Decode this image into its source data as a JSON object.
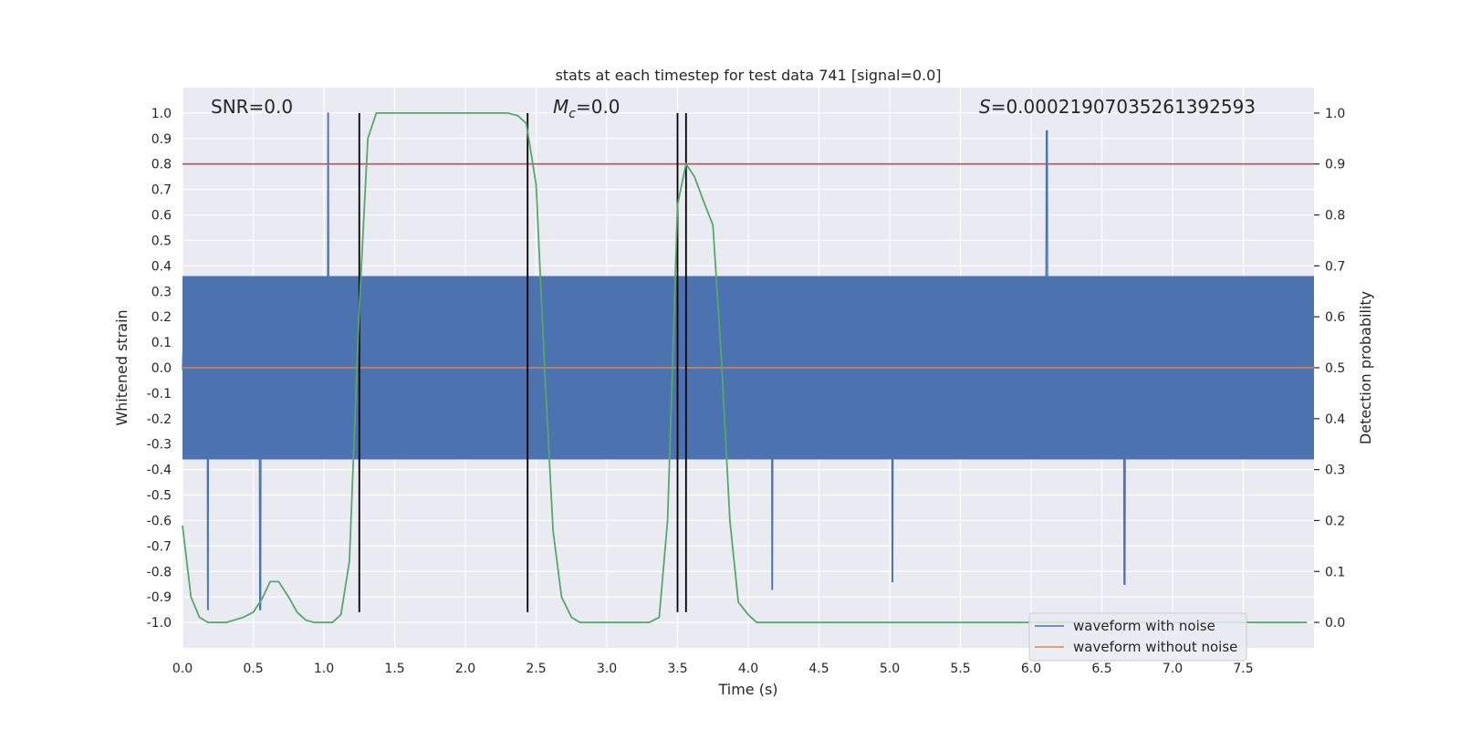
{
  "chart_data": {
    "type": "line",
    "title": "stats at each timestep for test data 741 [signal=0.0]",
    "xlabel": "Time (s)",
    "ylabel_left": "Whitened strain",
    "ylabel_right": "Detection probability",
    "xlim": [
      0.0,
      8.0
    ],
    "ylim_left": [
      -1.1,
      1.1
    ],
    "ylim_right": [
      -0.05,
      1.05
    ],
    "x_ticks": [
      "0.0",
      "0.5",
      "1.0",
      "1.5",
      "2.0",
      "2.5",
      "3.0",
      "3.5",
      "4.0",
      "4.5",
      "5.0",
      "5.5",
      "6.0",
      "6.5",
      "7.0",
      "7.5"
    ],
    "y_left_ticks": [
      "1.0",
      "0.9",
      "0.8",
      "0.7",
      "0.6",
      "0.5",
      "0.4",
      "0.3",
      "0.2",
      "0.1",
      "0.0",
      "-0.1",
      "-0.2",
      "-0.3",
      "-0.4",
      "-0.5",
      "-0.6",
      "-0.7",
      "-0.8",
      "-0.9",
      "-1.0"
    ],
    "y_right_ticks": [
      "1.0",
      "0.9",
      "0.8",
      "0.7",
      "0.6",
      "0.5",
      "0.4",
      "0.3",
      "0.2",
      "0.1",
      "0.0"
    ],
    "grid": true,
    "annotations": {
      "snr": "SNR=0.0",
      "mc_symbol": "M",
      "mc_sub": "c",
      "mc_value": "=0.0",
      "s_symbol": "S",
      "s_value": "=0.00021907035261392593"
    },
    "threshold_left": 0.8,
    "vertical_markers_s": [
      1.25,
      2.44,
      3.5,
      3.56
    ],
    "series": [
      {
        "name": "waveform with noise",
        "color": "#4c72b0",
        "description_values": {
          "typical_amplitude_range": [
            -0.4,
            0.4
          ],
          "notable_peaks": [
            [
              1.03,
              1.0
            ],
            [
              6.11,
              0.93
            ],
            [
              0.18,
              -0.95
            ],
            [
              0.55,
              -0.95
            ],
            [
              4.17,
              -0.87
            ],
            [
              5.02,
              -0.84
            ],
            [
              6.66,
              -0.85
            ]
          ]
        }
      },
      {
        "name": "waveform without noise",
        "color": "#dd8452",
        "values_constant": 0.0
      },
      {
        "name": "",
        "color": "#55a868",
        "axis": "right",
        "x": [
          0.0,
          0.06,
          0.12,
          0.18,
          0.25,
          0.31,
          0.37,
          0.43,
          0.5,
          0.56,
          0.62,
          0.68,
          0.75,
          0.81,
          0.87,
          0.93,
          1.0,
          1.06,
          1.12,
          1.18,
          1.25,
          1.31,
          1.37,
          1.43,
          1.5,
          1.6,
          1.8,
          2.0,
          2.2,
          2.3,
          2.37,
          2.43,
          2.5,
          2.56,
          2.62,
          2.68,
          2.75,
          2.81,
          2.87,
          2.93,
          3.0,
          3.1,
          3.2,
          3.3,
          3.37,
          3.43,
          3.5,
          3.56,
          3.62,
          3.68,
          3.75,
          3.81,
          3.87,
          3.93,
          4.0,
          4.06,
          4.2,
          5.0,
          6.0,
          7.0,
          7.95
        ],
        "values": [
          0.19,
          0.05,
          0.01,
          0.0,
          0.0,
          0.0,
          0.005,
          0.01,
          0.02,
          0.045,
          0.08,
          0.08,
          0.05,
          0.02,
          0.005,
          0.0,
          0.0,
          0.0,
          0.015,
          0.12,
          0.62,
          0.95,
          1.0,
          1.0,
          1.0,
          1.0,
          1.0,
          1.0,
          1.0,
          1.0,
          0.995,
          0.98,
          0.86,
          0.5,
          0.18,
          0.05,
          0.01,
          0.0,
          0.0,
          0.0,
          0.0,
          0.0,
          0.0,
          0.0,
          0.01,
          0.2,
          0.82,
          0.9,
          0.875,
          0.83,
          0.78,
          0.52,
          0.2,
          0.04,
          0.015,
          0.0,
          0.0,
          0.0,
          0.0,
          0.0,
          0.0
        ]
      }
    ],
    "legend_position": "lower-right"
  }
}
